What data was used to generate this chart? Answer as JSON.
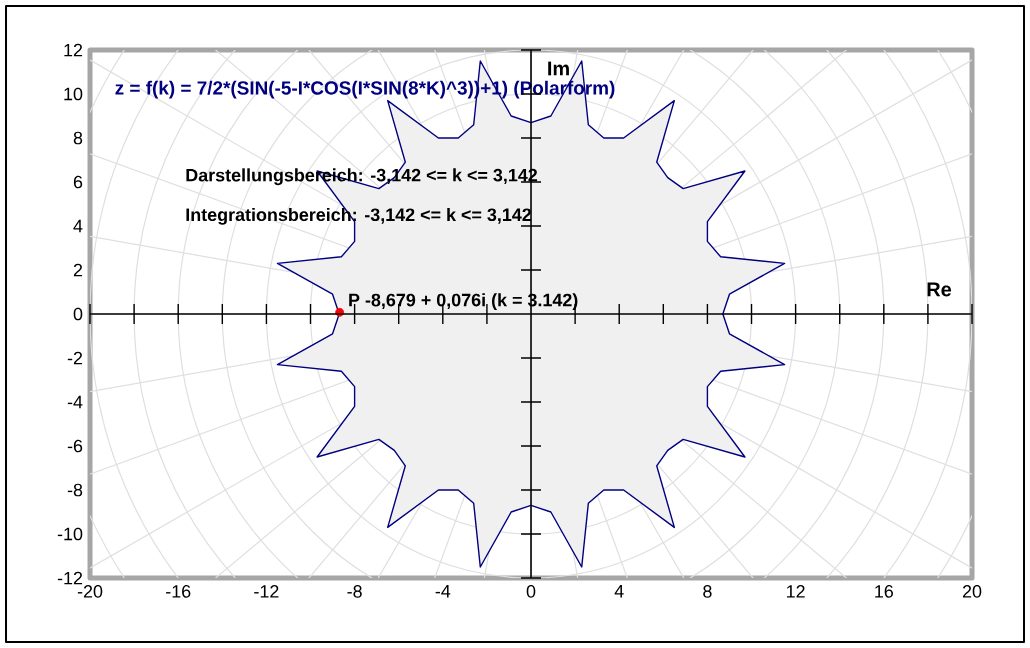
{
  "chart_data": {
    "type": "area",
    "title": "z = f(k) = 7/2*(SIN(-5-I*COS(I*SIN(8*K)^3))+1)  (Polarform)",
    "xlabel": "Re",
    "ylabel": "Im",
    "annotations": [
      "Darstellungsbereich: -3,142 <= k <= 3,142",
      "Integrationsbereich: -3,142 <= k <= 3,142",
      {
        "text": "P -8,679 + 0,076i  (k = 3.142)",
        "x": -8.679,
        "y": 0.076
      }
    ],
    "series": [
      {
        "color": "#000080",
        "x": [
          8.7,
          9.0,
          11.5,
          8.6,
          8.0,
          8.0,
          9.7,
          6.9,
          6.2,
          5.7,
          6.5,
          4.2,
          3.3,
          2.6,
          2.3,
          0.9,
          0,
          -0.9,
          -2.3,
          -2.6,
          -3.3,
          -4.2,
          -6.5,
          -5.7,
          -6.2,
          -6.9,
          -9.7,
          -8.0,
          -8.0,
          -8.6,
          -11.5,
          -9.0,
          -8.7,
          -9.0,
          -11.5,
          -8.6,
          -8.0,
          -8.0,
          -9.7,
          -6.9,
          -6.2,
          -5.7,
          -6.5,
          -4.2,
          -3.3,
          -2.6,
          -2.3,
          -0.9,
          0,
          0.9,
          2.3,
          2.6,
          3.3,
          4.2,
          6.5,
          5.7,
          6.2,
          6.9,
          9.7,
          8.0,
          8.0,
          8.6,
          11.5,
          9.0
        ],
        "values": [
          0,
          0.9,
          2.3,
          2.6,
          3.3,
          4.2,
          6.5,
          5.7,
          6.2,
          6.9,
          9.7,
          8.0,
          8.0,
          8.6,
          11.5,
          9.0,
          8.7,
          9.0,
          11.5,
          8.6,
          8.0,
          8.0,
          9.7,
          6.9,
          6.2,
          5.7,
          6.5,
          4.2,
          3.3,
          2.6,
          2.3,
          0.9,
          0,
          -0.9,
          -2.3,
          -2.6,
          -3.3,
          -4.2,
          -6.5,
          -5.7,
          -6.2,
          -6.9,
          -9.7,
          -8.0,
          -8.0,
          -8.6,
          -11.5,
          -9.0,
          -8.7,
          -9.0,
          -11.5,
          -8.6,
          -8.0,
          -8.0,
          -9.7,
          -6.9,
          -6.2,
          -5.7,
          -6.5,
          -4.2,
          -3.3,
          -2.6,
          -2.3,
          -0.9
        ]
      },
      {
        "type": "scatter",
        "color": "#ff0000",
        "marker": "circle",
        "x": [
          -8.679
        ],
        "values": [
          0.076
        ]
      }
    ],
    "xlim": [
      -20,
      20
    ],
    "ylim": [
      -12,
      12
    ],
    "xticks": [
      -20,
      -16,
      -12,
      -8,
      -4,
      0,
      4,
      8,
      12,
      16,
      20
    ],
    "yticks": [
      -12,
      -10,
      -8,
      -6,
      -4,
      -2,
      0,
      2,
      4,
      6,
      8,
      10,
      12
    ],
    "grid": true
  }
}
